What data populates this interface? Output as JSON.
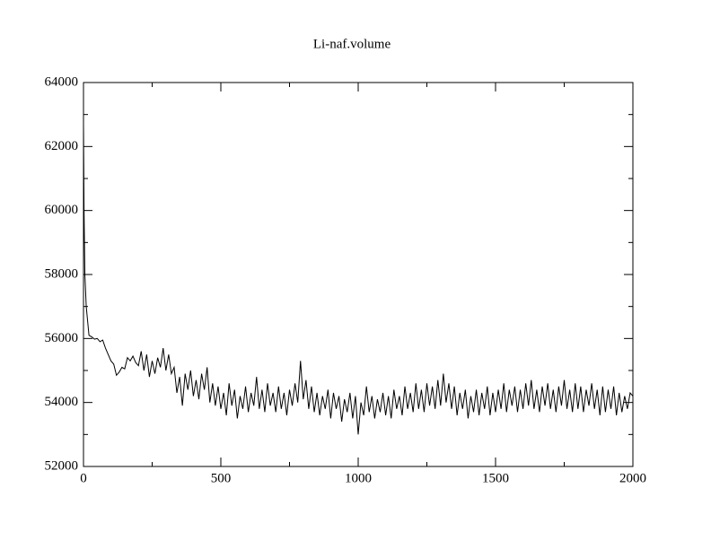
{
  "chart_data": {
    "type": "line",
    "title": "Li-naf.volume",
    "color": "#000000",
    "xlim": [
      0,
      2000
    ],
    "xticks": [
      0,
      500,
      1000,
      1500,
      2000
    ],
    "minor_xticks": [
      250,
      750,
      1250,
      1750
    ],
    "ylim": [
      52000,
      64000
    ],
    "yticks": [
      52000,
      54000,
      56000,
      58000,
      60000,
      62000,
      64000
    ],
    "minor_yticks": [
      53000,
      55000,
      57000,
      59000,
      61000,
      63000
    ],
    "x": [
      0,
      2,
      5,
      10,
      20,
      30,
      40,
      50,
      60,
      70,
      80,
      90,
      100,
      110,
      120,
      130,
      140,
      150,
      160,
      170,
      180,
      190,
      200,
      210,
      220,
      230,
      240,
      250,
      260,
      270,
      280,
      290,
      300,
      310,
      320,
      330,
      340,
      350,
      360,
      370,
      380,
      390,
      400,
      410,
      420,
      430,
      440,
      450,
      460,
      470,
      480,
      490,
      500,
      510,
      520,
      530,
      540,
      550,
      560,
      570,
      580,
      590,
      600,
      610,
      620,
      630,
      640,
      650,
      660,
      670,
      680,
      690,
      700,
      710,
      720,
      730,
      740,
      750,
      760,
      770,
      780,
      790,
      800,
      810,
      820,
      830,
      840,
      850,
      860,
      870,
      880,
      890,
      900,
      910,
      920,
      930,
      940,
      950,
      960,
      970,
      980,
      990,
      1000,
      1010,
      1020,
      1030,
      1040,
      1050,
      1060,
      1070,
      1080,
      1090,
      1100,
      1110,
      1120,
      1130,
      1140,
      1150,
      1160,
      1170,
      1180,
      1190,
      1200,
      1210,
      1220,
      1230,
      1240,
      1250,
      1260,
      1270,
      1280,
      1290,
      1300,
      1310,
      1320,
      1330,
      1340,
      1350,
      1360,
      1370,
      1380,
      1390,
      1400,
      1410,
      1420,
      1430,
      1440,
      1450,
      1460,
      1470,
      1480,
      1490,
      1500,
      1510,
      1520,
      1530,
      1540,
      1550,
      1560,
      1570,
      1580,
      1590,
      1600,
      1610,
      1620,
      1630,
      1640,
      1650,
      1660,
      1670,
      1680,
      1690,
      1700,
      1710,
      1720,
      1730,
      1740,
      1750,
      1760,
      1770,
      1780,
      1790,
      1800,
      1810,
      1820,
      1830,
      1840,
      1850,
      1860,
      1870,
      1880,
      1890,
      1900,
      1910,
      1920,
      1930,
      1940,
      1950,
      1960,
      1970,
      1980,
      1990,
      2000
    ],
    "values": [
      62700,
      60000,
      58000,
      57000,
      56100,
      56050,
      55980,
      56000,
      55900,
      55950,
      55700,
      55500,
      55300,
      55200,
      54850,
      54950,
      55100,
      55050,
      55400,
      55300,
      55450,
      55250,
      55150,
      55600,
      55000,
      55500,
      54800,
      55300,
      54900,
      55400,
      55100,
      55700,
      55000,
      55500,
      54900,
      55100,
      54300,
      54800,
      53900,
      54900,
      54400,
      55000,
      54200,
      54700,
      54100,
      54900,
      54400,
      55100,
      54000,
      54600,
      53900,
      54500,
      53800,
      54300,
      53600,
      54600,
      53900,
      54400,
      53500,
      54200,
      53800,
      54500,
      53700,
      54300,
      53900,
      54800,
      53800,
      54400,
      53700,
      54600,
      53900,
      54300,
      53700,
      54500,
      53800,
      54300,
      53600,
      54400,
      53900,
      54600,
      54000,
      55300,
      54100,
      54700,
      53800,
      54500,
      53700,
      54300,
      53600,
      54200,
      53800,
      54400,
      53500,
      54300,
      53800,
      54200,
      53400,
      54100,
      53700,
      54300,
      53500,
      54200,
      53000,
      54000,
      53600,
      54500,
      53700,
      54200,
      53500,
      54100,
      53700,
      54300,
      53600,
      54200,
      53500,
      54400,
      53800,
      54200,
      53600,
      54500,
      53800,
      54300,
      53700,
      54600,
      53800,
      54400,
      53700,
      54600,
      53900,
      54500,
      53800,
      54700,
      53900,
      54900,
      54000,
      54600,
      53800,
      54500,
      53600,
      54300,
      53800,
      54400,
      53500,
      54200,
      53700,
      54400,
      53600,
      54300,
      53800,
      54500,
      53600,
      54300,
      53700,
      54400,
      53800,
      54600,
      53700,
      54400,
      53900,
      54500,
      53700,
      54400,
      53800,
      54600,
      53900,
      54700,
      53800,
      54400,
      53700,
      54500,
      53900,
      54600,
      53800,
      54400,
      53700,
      54500,
      53900,
      54700,
      53800,
      54400,
      53700,
      54600,
      53800,
      54500,
      53700,
      54400,
      53900,
      54600,
      53800,
      54400,
      53600,
      54500,
      53700,
      54400,
      53800,
      54500,
      53600,
      54300,
      53700,
      54200,
      53800,
      54300,
      54200
    ]
  }
}
